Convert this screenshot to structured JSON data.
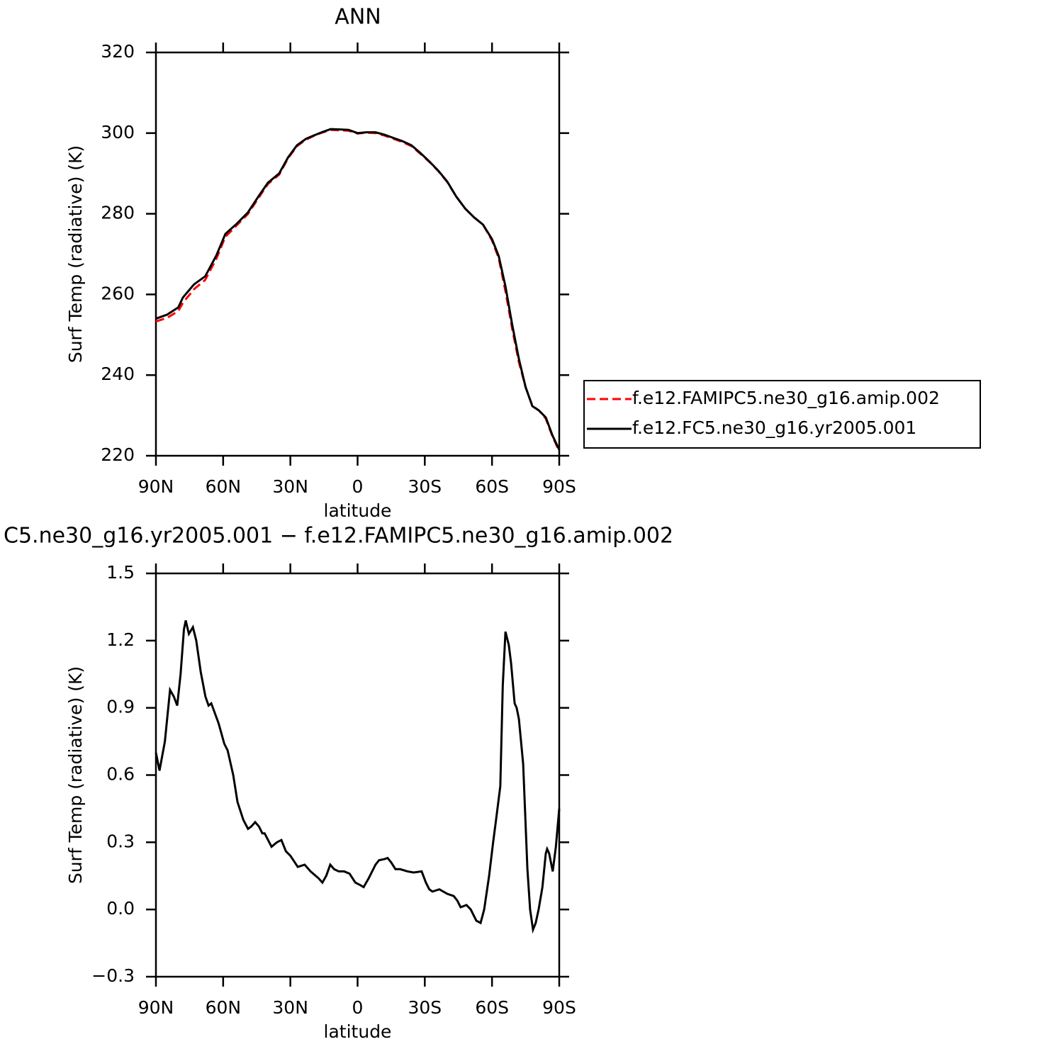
{
  "chart_data": [
    {
      "type": "line",
      "title": "ANN",
      "xlabel": "latitude",
      "ylabel": "Surf Temp (radiative) (K)",
      "x": [
        90,
        85,
        80,
        78,
        73,
        68,
        63,
        59,
        54,
        49,
        44,
        40,
        35,
        31,
        27,
        23,
        20,
        16,
        12,
        8,
        4,
        0,
        -4,
        -8,
        -12,
        -16,
        -20,
        -24,
        -28,
        -32,
        -36,
        -40,
        -44,
        -48,
        -52,
        -56,
        -60,
        -63,
        -66,
        -69,
        -72,
        -75,
        -78,
        -81,
        -84,
        -87,
        -90
      ],
      "series": [
        {
          "name": "f.e12.FAMIPC5.ne30_g16.amip.002",
          "color": "#ff0000",
          "linestyle": "dashed",
          "values": [
            253.3,
            254.2,
            255.9,
            257.9,
            261.3,
            263.6,
            268.9,
            274.3,
            277.1,
            279.9,
            284.1,
            287.4,
            289.7,
            293.8,
            296.8,
            298.4,
            299.2,
            300.1,
            300.8,
            300.7,
            300.6,
            299.9,
            300.1,
            300.0,
            299.4,
            298.6,
            297.8,
            296.8,
            294.9,
            292.9,
            290.6,
            287.9,
            284.3,
            281.3,
            279.1,
            277.3,
            273.4,
            269.0,
            260.8,
            251.5,
            243.2,
            237.0,
            232.4,
            231.2,
            229.2,
            224.8,
            221.1
          ]
        },
        {
          "name": "f.e12.FC5.ne30_g16.yr2005.001",
          "color": "#000000",
          "linestyle": "solid",
          "values": [
            254.0,
            255.0,
            256.8,
            259.2,
            262.5,
            264.5,
            269.7,
            275.0,
            277.5,
            280.3,
            284.5,
            287.7,
            290.0,
            294.0,
            297.0,
            298.6,
            299.3,
            300.2,
            301.0,
            300.9,
            300.8,
            300.0,
            300.2,
            300.2,
            299.6,
            298.8,
            298.0,
            297.0,
            295.1,
            293.0,
            290.7,
            288.0,
            284.3,
            281.3,
            279.1,
            277.3,
            273.7,
            269.5,
            262.0,
            252.5,
            244.0,
            237.0,
            232.3,
            231.2,
            229.5,
            225.0,
            221.5
          ]
        }
      ],
      "xlim": [
        90,
        -90
      ],
      "xticks": [
        {
          "value": 90,
          "label": "90N"
        },
        {
          "value": 60,
          "label": "60N"
        },
        {
          "value": 30,
          "label": "30N"
        },
        0,
        {
          "value": -30,
          "label": "30S"
        },
        {
          "value": -60,
          "label": "60S"
        },
        {
          "value": -90,
          "label": "90S"
        }
      ],
      "ylim": [
        220,
        320
      ],
      "yticks": [
        220,
        240,
        260,
        280,
        300,
        320
      ]
    },
    {
      "type": "line",
      "title": "C5.ne30_g16.yr2005.001 − f.e12.FAMIPC5.ne30_g16.amip.002",
      "xlabel": "latitude",
      "ylabel": "Surf Temp (radiative) (K)",
      "x": [
        90,
        88.4,
        86,
        83.7,
        82,
        80.5,
        79,
        77.5,
        76.7,
        75.3,
        73.5,
        72,
        70,
        67.9,
        66.5,
        65.3,
        62,
        59.5,
        58,
        55.5,
        53.6,
        51,
        48.9,
        47.5,
        45.7,
        44,
        42.5,
        41.5,
        38.4,
        36,
        34,
        32,
        30,
        28,
        26.7,
        23.6,
        21,
        17.5,
        15.7,
        14,
        12.2,
        10.5,
        8.4,
        6,
        3.6,
        1,
        -1,
        -2.7,
        -5,
        -6.5,
        -8,
        -9.6,
        -12,
        -13.4,
        -15,
        -16.9,
        -19,
        -22.3,
        -25,
        -28.6,
        -30.5,
        -32,
        -33.4,
        -36.5,
        -40,
        -42.9,
        -44.5,
        -46,
        -48.6,
        -50.5,
        -53,
        -54.9,
        -56.5,
        -58.7,
        -60.5,
        -61.8,
        -63.7,
        -64.8,
        -66,
        -67.5,
        -68.5,
        -70.1,
        -71,
        -72,
        -73.9,
        -75.8,
        -77,
        -78.3,
        -79.5,
        -80.8,
        -82.5,
        -84,
        -84.6,
        -85.5,
        -87.1,
        -88.5,
        -90
      ],
      "color": "#000000",
      "values": [
        0.7,
        0.62,
        0.75,
        0.98,
        0.95,
        0.91,
        1.05,
        1.25,
        1.29,
        1.23,
        1.26,
        1.2,
        1.06,
        0.95,
        0.91,
        0.92,
        0.83,
        0.74,
        0.71,
        0.6,
        0.48,
        0.4,
        0.36,
        0.37,
        0.39,
        0.37,
        0.34,
        0.34,
        0.28,
        0.3,
        0.31,
        0.26,
        0.24,
        0.21,
        0.19,
        0.2,
        0.17,
        0.14,
        0.12,
        0.15,
        0.2,
        0.18,
        0.17,
        0.17,
        0.16,
        0.12,
        0.11,
        0.1,
        0.14,
        0.17,
        0.2,
        0.22,
        0.225,
        0.23,
        0.21,
        0.18,
        0.18,
        0.17,
        0.165,
        0.17,
        0.12,
        0.09,
        0.08,
        0.09,
        0.07,
        0.06,
        0.04,
        0.01,
        0.02,
        0.0,
        -0.05,
        -0.06,
        0.0,
        0.15,
        0.3,
        0.4,
        0.55,
        1.0,
        1.24,
        1.18,
        1.1,
        0.92,
        0.9,
        0.85,
        0.65,
        0.18,
        0.0,
        -0.09,
        -0.06,
        0.0,
        0.1,
        0.25,
        0.27,
        0.25,
        0.17,
        0.28,
        0.45
      ],
      "xlim": [
        90,
        -90
      ],
      "xticks": [
        {
          "value": 90,
          "label": "90N"
        },
        {
          "value": 60,
          "label": "60N"
        },
        {
          "value": 30,
          "label": "30N"
        },
        0,
        {
          "value": -30,
          "label": "30S"
        },
        {
          "value": -60,
          "label": "60S"
        },
        {
          "value": -90,
          "label": "90S"
        }
      ],
      "ylim": [
        -0.3,
        1.5
      ],
      "yticks": [
        {
          "value": -0.3,
          "label": "−0.3"
        },
        {
          "value": 0,
          "label": "0.0"
        },
        0.3,
        0.6,
        0.9,
        1.2,
        1.5
      ]
    }
  ]
}
